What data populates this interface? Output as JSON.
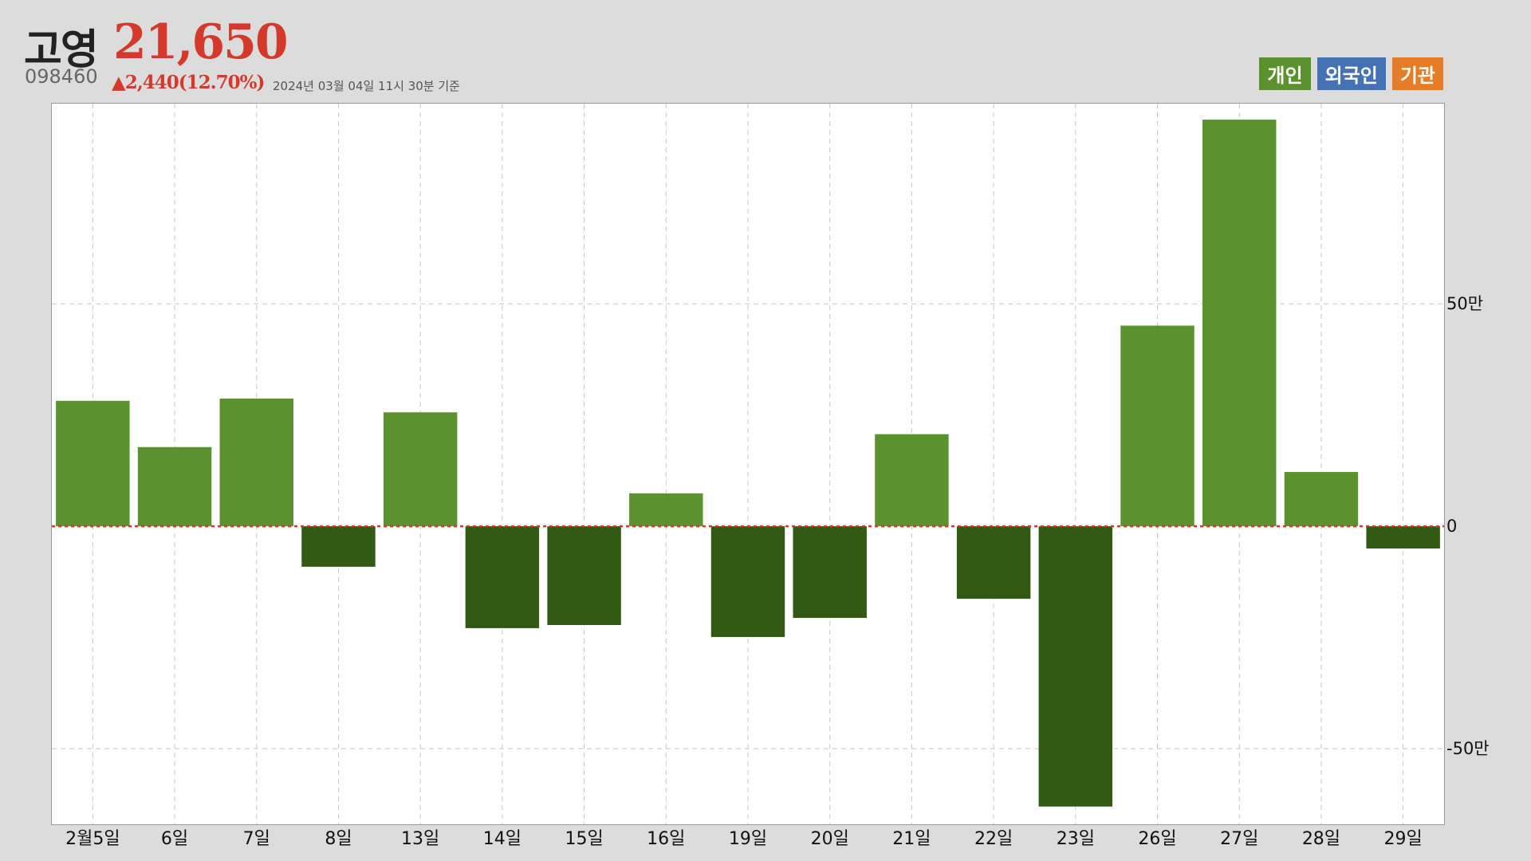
{
  "header": {
    "name": "고영",
    "price": "21,650",
    "code": "098460",
    "change": "▲2,440(12.70%)",
    "timestamp": "2024년 03월 04일 11시 30분 기준"
  },
  "legend": [
    {
      "label": "개인",
      "color": "#5a922e"
    },
    {
      "label": "외국인",
      "color": "#4472b4"
    },
    {
      "label": "기관",
      "color": "#e67c26"
    }
  ],
  "chart_data": {
    "type": "bar",
    "categories": [
      "2월5일",
      "6일",
      "7일",
      "8일",
      "13일",
      "14일",
      "15일",
      "16일",
      "19일",
      "20일",
      "21일",
      "22일",
      "23일",
      "26일",
      "27일",
      "28일",
      "29일"
    ],
    "series": [
      {
        "name": "개인",
        "values": [
          282000,
          178000,
          287000,
          -91000,
          256000,
          -229000,
          -222000,
          74000,
          -249000,
          -206000,
          207000,
          -163000,
          -630000,
          451000,
          914000,
          122000,
          -50000
        ]
      }
    ],
    "ylim": [
      -670000,
      950000
    ],
    "yticks": [
      -500000,
      0,
      500000
    ],
    "ytick_labels": [
      "-50만",
      "0",
      "50만"
    ],
    "zero_line_color": "#d9362b",
    "positive_color": "#5a922e",
    "negative_color": "#335a14",
    "grid": true
  }
}
